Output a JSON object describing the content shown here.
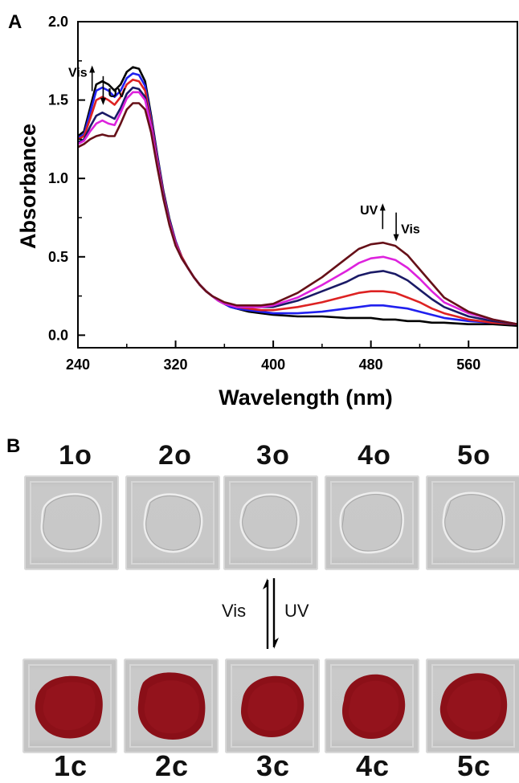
{
  "panel_a": {
    "label": "A"
  },
  "panel_b": {
    "label": "B",
    "open_labels": [
      "1o",
      "2o",
      "3o",
      "4o",
      "5o"
    ],
    "closed_labels": [
      "1c",
      "2c",
      "3c",
      "4c",
      "5c"
    ],
    "switch": {
      "left": "Vis",
      "right": "UV"
    },
    "colors": {
      "film": "#c8c8c8",
      "closed_spot": "#8c1018"
    }
  },
  "chart_data": {
    "type": "line",
    "xlabel": "Wavelength (nm)",
    "ylabel": "Absorbance",
    "xlim": [
      240,
      600
    ],
    "ylim": [
      -0.08,
      2.0
    ],
    "xticks": [
      240,
      320,
      400,
      480,
      560
    ],
    "yticks": [
      0.0,
      0.5,
      1.0,
      1.5,
      2.0
    ],
    "ytick_labels": [
      "0.0",
      "0.5",
      "1.0",
      "1.5",
      "2.0"
    ],
    "x": [
      240,
      245,
      250,
      255,
      260,
      265,
      270,
      275,
      280,
      285,
      290,
      295,
      300,
      305,
      310,
      315,
      320,
      325,
      330,
      335,
      340,
      345,
      350,
      355,
      360,
      365,
      370,
      380,
      390,
      400,
      420,
      440,
      460,
      470,
      480,
      490,
      500,
      510,
      520,
      530,
      540,
      560,
      580,
      600
    ],
    "series": [
      {
        "color": "#000000",
        "values": [
          1.27,
          1.3,
          1.45,
          1.6,
          1.62,
          1.6,
          1.56,
          1.6,
          1.68,
          1.71,
          1.7,
          1.62,
          1.4,
          1.15,
          0.92,
          0.74,
          0.6,
          0.5,
          0.43,
          0.37,
          0.32,
          0.28,
          0.25,
          0.22,
          0.2,
          0.18,
          0.17,
          0.15,
          0.14,
          0.13,
          0.12,
          0.12,
          0.11,
          0.11,
          0.11,
          0.1,
          0.1,
          0.09,
          0.09,
          0.08,
          0.08,
          0.07,
          0.07,
          0.06
        ]
      },
      {
        "color": "#2020ee",
        "values": [
          1.26,
          1.28,
          1.42,
          1.56,
          1.58,
          1.56,
          1.52,
          1.56,
          1.64,
          1.67,
          1.66,
          1.59,
          1.38,
          1.14,
          0.91,
          0.73,
          0.6,
          0.5,
          0.43,
          0.37,
          0.32,
          0.28,
          0.25,
          0.22,
          0.2,
          0.18,
          0.17,
          0.16,
          0.15,
          0.14,
          0.14,
          0.15,
          0.17,
          0.18,
          0.19,
          0.19,
          0.18,
          0.17,
          0.15,
          0.13,
          0.11,
          0.09,
          0.08,
          0.07
        ]
      },
      {
        "color": "#dd2222",
        "values": [
          1.25,
          1.27,
          1.38,
          1.5,
          1.52,
          1.5,
          1.47,
          1.52,
          1.6,
          1.63,
          1.62,
          1.56,
          1.36,
          1.12,
          0.9,
          0.72,
          0.59,
          0.5,
          0.43,
          0.37,
          0.32,
          0.28,
          0.25,
          0.22,
          0.2,
          0.19,
          0.18,
          0.17,
          0.16,
          0.16,
          0.18,
          0.21,
          0.25,
          0.27,
          0.28,
          0.28,
          0.27,
          0.24,
          0.21,
          0.17,
          0.14,
          0.1,
          0.08,
          0.07
        ]
      },
      {
        "color": "#1a1a66",
        "values": [
          1.23,
          1.25,
          1.33,
          1.4,
          1.42,
          1.4,
          1.38,
          1.45,
          1.54,
          1.58,
          1.57,
          1.52,
          1.34,
          1.1,
          0.89,
          0.71,
          0.58,
          0.49,
          0.43,
          0.37,
          0.32,
          0.28,
          0.25,
          0.22,
          0.2,
          0.19,
          0.18,
          0.18,
          0.18,
          0.18,
          0.22,
          0.28,
          0.34,
          0.38,
          0.4,
          0.41,
          0.39,
          0.35,
          0.29,
          0.23,
          0.18,
          0.12,
          0.09,
          0.07
        ]
      },
      {
        "color": "#dd22dd",
        "values": [
          1.22,
          1.24,
          1.3,
          1.35,
          1.37,
          1.35,
          1.34,
          1.42,
          1.51,
          1.55,
          1.55,
          1.5,
          1.33,
          1.09,
          0.88,
          0.71,
          0.58,
          0.49,
          0.43,
          0.37,
          0.32,
          0.28,
          0.25,
          0.22,
          0.2,
          0.19,
          0.18,
          0.18,
          0.18,
          0.19,
          0.24,
          0.32,
          0.41,
          0.46,
          0.49,
          0.5,
          0.48,
          0.43,
          0.36,
          0.28,
          0.21,
          0.14,
          0.1,
          0.07
        ]
      },
      {
        "color": "#661018",
        "values": [
          1.2,
          1.22,
          1.25,
          1.27,
          1.28,
          1.27,
          1.27,
          1.35,
          1.44,
          1.48,
          1.48,
          1.44,
          1.29,
          1.07,
          0.87,
          0.7,
          0.57,
          0.49,
          0.43,
          0.37,
          0.32,
          0.28,
          0.25,
          0.23,
          0.21,
          0.2,
          0.19,
          0.19,
          0.19,
          0.2,
          0.27,
          0.37,
          0.49,
          0.55,
          0.58,
          0.59,
          0.57,
          0.51,
          0.42,
          0.33,
          0.24,
          0.15,
          0.1,
          0.07
        ]
      }
    ],
    "annotations": [
      {
        "text": "Vis",
        "arrow": "up",
        "x": 249,
        "y": 1.68
      },
      {
        "text": "UV",
        "arrow": "down",
        "x": 262,
        "y": 1.55
      },
      {
        "text": "UV",
        "arrow": "up",
        "x": 487,
        "y": 0.8
      },
      {
        "text": "Vis",
        "arrow": "down",
        "x": 502,
        "y": 0.68
      }
    ]
  }
}
